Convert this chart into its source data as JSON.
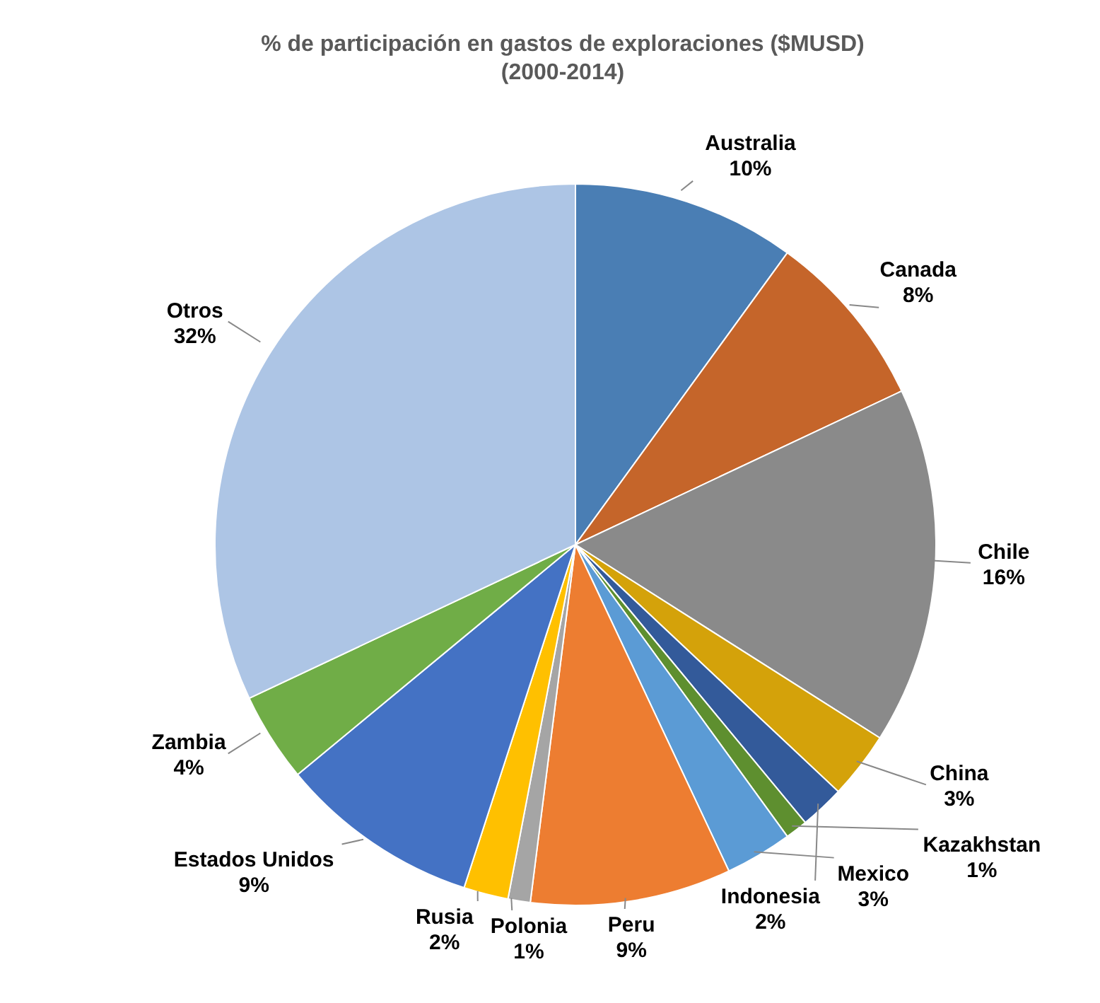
{
  "chart_data": {
    "type": "pie",
    "title": "%  de participación en gastos de exploraciones ($MUSD)\n(2000-2014)",
    "categories": [
      "Australia",
      "Canada",
      "Chile",
      "China",
      "Indonesia",
      "Kazakhstan",
      "Mexico",
      "Peru",
      "Polonia",
      "Rusia",
      "Estados Unidos",
      "Zambia",
      "Otros"
    ],
    "values": [
      10,
      8,
      16,
      3,
      2,
      1,
      3,
      9,
      1,
      2,
      9,
      4,
      32
    ],
    "value_labels": [
      "10%",
      "8%",
      "16%",
      "3%",
      "2%",
      "1%",
      "3%",
      "9%",
      "1%",
      "2%",
      "9%",
      "4%",
      "32%"
    ],
    "colors": [
      "#4a7eb4",
      "#c5652a",
      "#8a8a8a",
      "#d4a20a",
      "#335a9a",
      "#5e8f2f",
      "#5b9bd5",
      "#ed7d31",
      "#a5a5a5",
      "#ffc000",
      "#4472c4",
      "#70ad47",
      "#adc5e5"
    ]
  }
}
